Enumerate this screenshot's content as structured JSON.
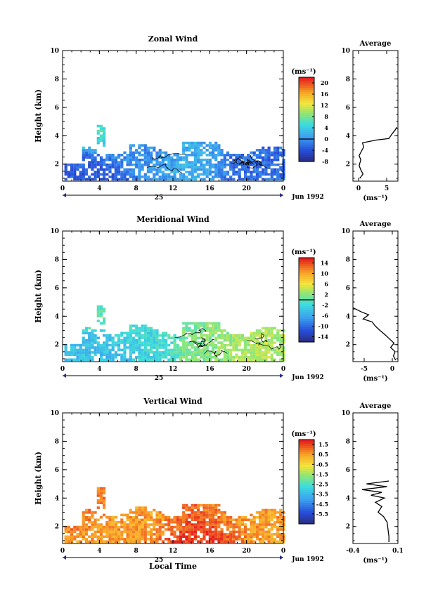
{
  "month_label": "Jun 1992",
  "day_label": "25",
  "x_title": "Local Time",
  "y_title": "Height (km)",
  "unit_label": "(ms⁻¹)",
  "avg_title": "Average",
  "chart_data": [
    {
      "type": "heatmap",
      "title": "Zonal Wind",
      "xlabel": "",
      "ylabel": "Height (km)",
      "xlim": [
        0,
        24
      ],
      "ylim": [
        0.8,
        10
      ],
      "xticks": [
        "0",
        "4",
        "8",
        "12",
        "16",
        "20",
        "0"
      ],
      "yticks": [
        "2",
        "4",
        "6",
        "8",
        "10"
      ],
      "colorbar": {
        "min": -8,
        "max": 22,
        "ticks": [
          "20",
          "16",
          "12",
          "8",
          "4",
          "0",
          "-4",
          "-8"
        ],
        "zero_line": 0
      },
      "blobs": [
        {
          "x": 4,
          "y": 4.1,
          "value": 6
        },
        {
          "x": 8,
          "y": 2.6,
          "value": 0
        },
        {
          "x": 14,
          "y": 2.5,
          "value": 2
        },
        {
          "x": 20,
          "y": 2.4,
          "value": -2
        },
        {
          "x": 2,
          "y": 1.6,
          "value": -3
        }
      ],
      "average": {
        "xlabel": "(ms⁻¹)",
        "xlim": [
          -1,
          7
        ],
        "ylim": [
          0.8,
          10
        ],
        "xticks": [
          "0",
          "5"
        ],
        "yticks": [
          "2",
          "4",
          "6",
          "8",
          "10"
        ],
        "profile": [
          [
            0.2,
            1.0
          ],
          [
            0.8,
            1.3
          ],
          [
            0.4,
            1.6
          ],
          [
            0.1,
            1.9
          ],
          [
            0.4,
            2.3
          ],
          [
            0.1,
            2.6
          ],
          [
            0.5,
            2.9
          ],
          [
            0.9,
            3.2
          ],
          [
            0.7,
            3.5
          ],
          [
            3.2,
            3.7
          ],
          [
            5.4,
            3.8
          ],
          [
            5.9,
            4.1
          ],
          [
            6.5,
            4.4
          ],
          [
            6.8,
            4.6
          ]
        ]
      }
    },
    {
      "type": "heatmap",
      "title": "Meridional Wind",
      "xlabel": "",
      "ylabel": "Height (km)",
      "xlim": [
        0,
        24
      ],
      "ylim": [
        0.8,
        10
      ],
      "xticks": [
        "0",
        "4",
        "8",
        "12",
        "16",
        "20",
        "0"
      ],
      "yticks": [
        "2",
        "4",
        "6",
        "8",
        "10"
      ],
      "colorbar": {
        "min": -16,
        "max": 16,
        "ticks": [
          "14",
          "10",
          "6",
          "2",
          "-2",
          "-6",
          "-10",
          "-14"
        ],
        "zero_line": 0
      },
      "blobs": [
        {
          "x": 4,
          "y": 4.0,
          "value": 0
        },
        {
          "x": 9,
          "y": 2.4,
          "value": -2
        },
        {
          "x": 15,
          "y": 2.4,
          "value": 2
        },
        {
          "x": 21,
          "y": 2.2,
          "value": 4
        },
        {
          "x": 3,
          "y": 1.8,
          "value": -4
        }
      ],
      "average": {
        "xlabel": "(ms⁻¹)",
        "xlim": [
          -7,
          1
        ],
        "ylim": [
          0.8,
          10
        ],
        "xticks": [
          "-5",
          "0"
        ],
        "yticks": [
          "2",
          "4",
          "6",
          "8",
          "10"
        ],
        "profile": [
          [
            -7.0,
            4.6
          ],
          [
            -5.5,
            4.3
          ],
          [
            -4.2,
            4.1
          ],
          [
            -5.2,
            3.8
          ],
          [
            -3.6,
            3.6
          ],
          [
            -3.0,
            3.3
          ],
          [
            -2.2,
            3.0
          ],
          [
            -1.3,
            2.7
          ],
          [
            -0.5,
            2.4
          ],
          [
            0.3,
            2.1
          ],
          [
            -0.3,
            1.8
          ],
          [
            0.5,
            1.5
          ],
          [
            0.2,
            1.2
          ],
          [
            0.6,
            0.9
          ]
        ]
      }
    },
    {
      "type": "heatmap",
      "title": "Vertical Wind",
      "xlabel": "Local Time",
      "ylabel": "Height (km)",
      "xlim": [
        0,
        24
      ],
      "ylim": [
        0.8,
        10
      ],
      "xticks": [
        "0",
        "4",
        "8",
        "12",
        "16",
        "20",
        "0"
      ],
      "yticks": [
        "2",
        "4",
        "6",
        "8",
        "10"
      ],
      "colorbar": {
        "min": -6.5,
        "max": 2,
        "ticks": [
          "1.5",
          "0.5",
          "-0.5",
          "-1.5",
          "-2.5",
          "-3.5",
          "-4.5",
          "-5.5"
        ]
      },
      "blobs": [
        {
          "x": 4,
          "y": 4.2,
          "value": 1.0
        },
        {
          "x": 14.6,
          "y": 2.0,
          "value": 1.8
        },
        {
          "x": 10,
          "y": 2.4,
          "value": 0.6
        },
        {
          "x": 18,
          "y": 2.6,
          "value": 0.7
        },
        {
          "x": 22,
          "y": 2.3,
          "value": 0.6
        }
      ],
      "average": {
        "xlabel": "(ms⁻¹)",
        "xlim": [
          -0.4,
          0.1
        ],
        "ylim": [
          0.8,
          10
        ],
        "xticks": [
          "-0.4",
          "0.1"
        ],
        "yticks": [
          "2",
          "4",
          "6",
          "8",
          "10"
        ],
        "profile": [
          [
            0.0,
            5.2
          ],
          [
            -0.25,
            5.0
          ],
          [
            -0.02,
            4.8
          ],
          [
            -0.3,
            4.6
          ],
          [
            -0.08,
            4.4
          ],
          [
            -0.2,
            4.2
          ],
          [
            -0.05,
            4.0
          ],
          [
            -0.15,
            3.7
          ],
          [
            -0.08,
            3.4
          ],
          [
            -0.12,
            3.0
          ],
          [
            -0.06,
            2.7
          ],
          [
            -0.02,
            2.3
          ],
          [
            -0.01,
            1.8
          ],
          [
            0.0,
            1.3
          ],
          [
            0.0,
            0.9
          ]
        ]
      }
    }
  ]
}
